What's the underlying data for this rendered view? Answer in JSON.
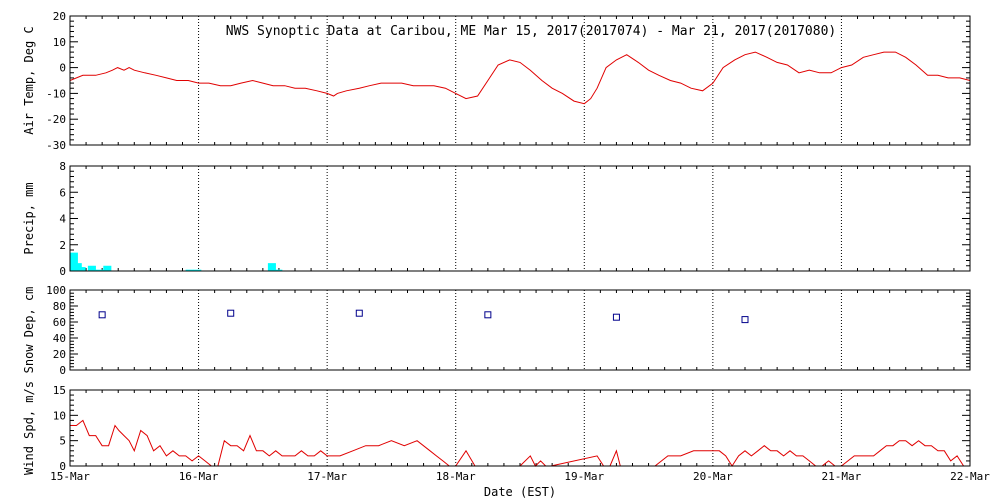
{
  "title": "NWS Synoptic Data at Caribou, ME   Mar 15, 2017(2017074) - Mar 21, 2017(2017080)",
  "xlabel": "Date (EST)",
  "x_ticks": [
    "15-Mar",
    "16-Mar",
    "17-Mar",
    "18-Mar",
    "19-Mar",
    "20-Mar",
    "21-Mar",
    "22-Mar"
  ],
  "colors": {
    "temp": "#e00000",
    "precip": "#00ffff",
    "snow": "#00008b",
    "wind": "#e00000",
    "axis": "#000000"
  },
  "chart_data": [
    {
      "type": "line",
      "ylabel": "Air Temp, Deg C",
      "ylim": [
        -30,
        20
      ],
      "yticks": [
        -30,
        -20,
        -10,
        0,
        10,
        20
      ],
      "xlim": [
        0,
        7
      ],
      "grid": "vertical dotted",
      "series": [
        {
          "x": [
            0,
            0.1,
            0.2,
            0.28,
            0.33,
            0.37,
            0.42,
            0.46,
            0.5,
            0.58,
            0.67,
            0.75,
            0.83,
            0.92,
            1,
            1.08,
            1.17,
            1.25,
            1.33,
            1.42,
            1.5,
            1.58,
            1.67,
            1.75,
            1.83,
            1.92,
            2,
            2.05,
            2.08,
            2.15,
            2.25,
            2.33,
            2.42,
            2.5,
            2.58,
            2.67,
            2.75,
            2.83,
            2.92,
            3,
            3.08,
            3.17,
            3.25,
            3.33,
            3.42,
            3.5,
            3.58,
            3.67,
            3.75,
            3.83,
            3.92,
            4,
            4.05,
            4.1,
            4.17,
            4.25,
            4.33,
            4.42,
            4.5,
            4.58,
            4.67,
            4.75,
            4.83,
            4.92,
            5,
            5.08,
            5.17,
            5.25,
            5.33,
            5.42,
            5.5,
            5.58,
            5.67,
            5.75,
            5.83,
            5.92,
            6,
            6.08,
            6.17,
            6.25,
            6.33,
            6.42,
            6.5,
            6.58,
            6.67,
            6.75,
            6.83,
            6.92,
            7
          ],
          "y": [
            -5,
            -3,
            -3,
            -2,
            -1,
            0,
            -1,
            0,
            -1,
            -2,
            -3,
            -4,
            -5,
            -5,
            -6,
            -6,
            -7,
            -7,
            -6,
            -5,
            -6,
            -7,
            -7,
            -8,
            -8,
            -9,
            -10,
            -11,
            -10,
            -9,
            -8,
            -7,
            -6,
            -6,
            -6,
            -7,
            -7,
            -7,
            -8,
            -10,
            -12,
            -11,
            -5,
            1,
            3,
            2,
            -1,
            -5,
            -8,
            -10,
            -13,
            -14,
            -12,
            -8,
            0,
            3,
            5,
            2,
            -1,
            -3,
            -5,
            -6,
            -8,
            -9,
            -6,
            0,
            3,
            5,
            6,
            4,
            2,
            1,
            -2,
            -1,
            -2,
            -2,
            0,
            1,
            4,
            5,
            6,
            6,
            4,
            1,
            -3,
            -3,
            -4,
            -4,
            -5
          ]
        }
      ]
    },
    {
      "type": "bar",
      "ylabel": "Precip, mm",
      "ylim": [
        0,
        8
      ],
      "yticks": [
        0,
        2,
        4,
        6,
        8
      ],
      "xlim": [
        0,
        7
      ],
      "grid": "vertical dotted",
      "series": [
        {
          "x": [
            0.02,
            0.05,
            0.08,
            0.16,
            0.22,
            0.28,
            0.92,
            0.98,
            1.56,
            1.61
          ],
          "values": [
            1.4,
            0.6,
            0.3,
            0.4,
            0.1,
            0.4,
            0.1,
            0.1,
            0.6,
            0.1
          ]
        }
      ]
    },
    {
      "type": "scatter",
      "ylabel": "Snow Dep, cm",
      "ylim": [
        0,
        100
      ],
      "yticks": [
        0,
        20,
        40,
        60,
        80,
        100
      ],
      "xlim": [
        0,
        7
      ],
      "grid": "vertical dotted",
      "series": [
        {
          "x": [
            0.25,
            1.25,
            2.25,
            3.25,
            4.25,
            5.25
          ],
          "y": [
            69,
            71,
            71,
            69,
            66,
            63
          ]
        }
      ]
    },
    {
      "type": "line",
      "ylabel": "Wind Spd, m/s",
      "ylim": [
        0,
        15
      ],
      "yticks": [
        0,
        5,
        10,
        15
      ],
      "xlim": [
        0,
        7
      ],
      "grid": "vertical dotted",
      "series": [
        {
          "x": [
            0,
            0.05,
            0.1,
            0.15,
            0.2,
            0.25,
            0.3,
            0.35,
            0.38,
            0.42,
            0.46,
            0.5,
            0.55,
            0.6,
            0.65,
            0.7,
            0.75,
            0.8,
            0.85,
            0.9,
            0.95,
            1,
            1.05,
            1.1,
            1.15,
            1.2,
            1.25,
            1.3,
            1.35,
            1.4,
            1.45,
            1.5,
            1.55,
            1.6,
            1.65,
            1.7,
            1.75,
            1.8,
            1.85,
            1.9,
            1.95,
            2,
            2.1,
            2.2,
            2.3,
            2.4,
            2.5,
            2.6,
            2.7,
            2.8,
            2.85,
            2.9,
            2.95,
            3,
            3.08,
            3.15,
            3.5,
            3.58,
            3.62,
            3.66,
            3.7,
            3.74,
            4.1,
            4.15,
            4.2,
            4.25,
            4.28,
            4.3,
            4.55,
            4.65,
            4.75,
            4.85,
            4.95,
            5.05,
            5.1,
            5.15,
            5.2,
            5.25,
            5.3,
            5.35,
            5.4,
            5.45,
            5.5,
            5.55,
            5.6,
            5.65,
            5.7,
            5.75,
            5.8,
            5.85,
            5.9,
            5.95,
            6,
            6.1,
            6.2,
            6.25,
            6.3,
            6.35,
            6.4,
            6.45,
            6.5,
            6.55,
            6.6,
            6.65,
            6.7,
            6.75,
            6.8,
            6.85,
            6.9,
            6.95,
            7
          ],
          "y": [
            8,
            8,
            9,
            6,
            6,
            4,
            4,
            8,
            7,
            6,
            5,
            3,
            7,
            6,
            3,
            4,
            2,
            3,
            2,
            2,
            1,
            2,
            1,
            0,
            0,
            5,
            4,
            4,
            3,
            6,
            3,
            3,
            2,
            3,
            2,
            2,
            2,
            3,
            2,
            2,
            3,
            2,
            2,
            3,
            4,
            4,
            5,
            4,
            5,
            3,
            2,
            1,
            0,
            0,
            3,
            0,
            0,
            2,
            0,
            1,
            0,
            0,
            2,
            0,
            0,
            3,
            0,
            0,
            0,
            2,
            2,
            3,
            3,
            3,
            2,
            0,
            2,
            3,
            2,
            3,
            4,
            3,
            3,
            2,
            3,
            2,
            2,
            1,
            0,
            0,
            1,
            0,
            0,
            2,
            2,
            2,
            3,
            4,
            4,
            5,
            5,
            4,
            5,
            4,
            4,
            3,
            3,
            1,
            2,
            0,
            0
          ]
        }
      ]
    }
  ]
}
